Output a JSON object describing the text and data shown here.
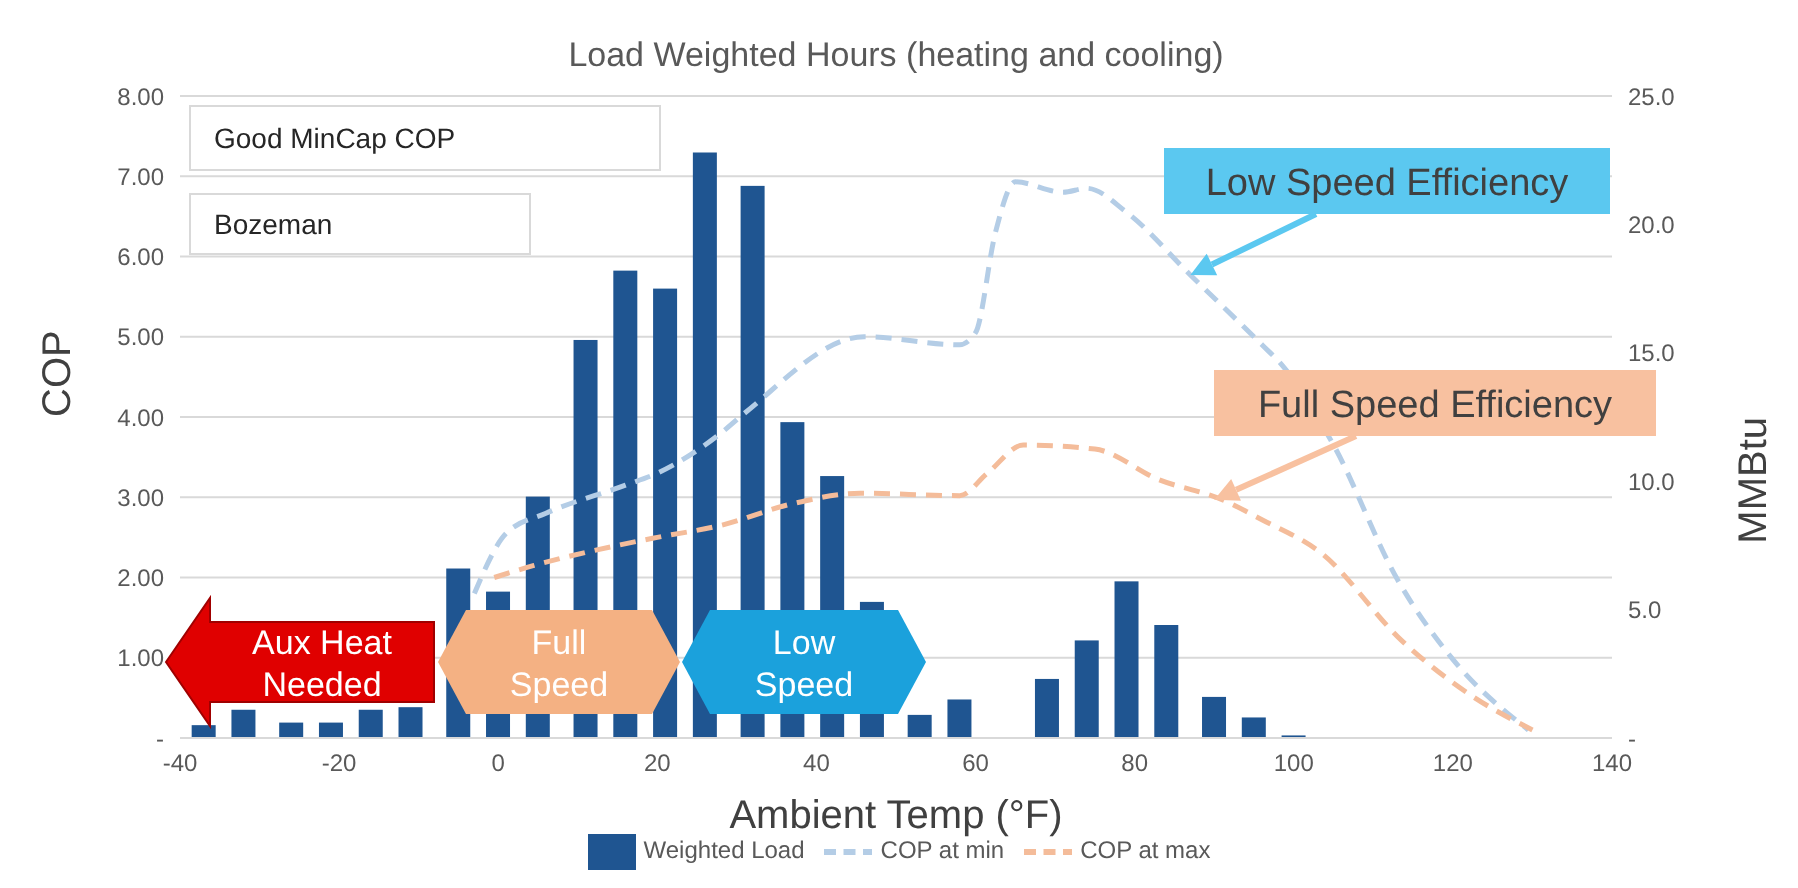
{
  "chart_data": {
    "type": "bar",
    "title": "Load Weighted Hours (heating and cooling)",
    "xlabel": "Ambient Temp (°F)",
    "ylabel": "COP",
    "y2label": "MMBtu",
    "xlim": [
      -40,
      140
    ],
    "xticks": [
      -40,
      -20,
      0,
      20,
      40,
      60,
      80,
      100,
      120,
      140
    ],
    "ylim": [
      0,
      8
    ],
    "yticks": [
      {
        "value": 0,
        "label": "-"
      },
      {
        "value": 1,
        "label": "1.00"
      },
      {
        "value": 2,
        "label": "2.00"
      },
      {
        "value": 3,
        "label": "3.00"
      },
      {
        "value": 4,
        "label": "4.00"
      },
      {
        "value": 5,
        "label": "5.00"
      },
      {
        "value": 6,
        "label": "6.00"
      },
      {
        "value": 7,
        "label": "7.00"
      },
      {
        "value": 8,
        "label": "8.00"
      }
    ],
    "y2lim": [
      0,
      25
    ],
    "y2ticks": [
      {
        "value": 0,
        "label": "-"
      },
      {
        "value": 5,
        "label": "5.0"
      },
      {
        "value": 10,
        "label": "10.0"
      },
      {
        "value": 15,
        "label": "15.0"
      },
      {
        "value": 20,
        "label": "20.0"
      },
      {
        "value": 25,
        "label": "25.0"
      }
    ],
    "grid": "y",
    "legend": "bottom",
    "marker": "none",
    "series": [
      {
        "name": "Weighted Load",
        "axis": "y2",
        "color": "#1f5591",
        "x": [
          -37,
          -32,
          -26,
          -21,
          -16,
          -11,
          -5,
          0,
          5,
          11,
          16,
          21,
          26,
          32,
          37,
          42,
          47,
          53,
          58,
          69,
          74,
          79,
          84,
          90,
          95,
          100
        ],
        "values": [
          0.5,
          1.1,
          0.6,
          0.6,
          1.1,
          1.2,
          6.6,
          5.7,
          9.4,
          15.5,
          18.2,
          17.5,
          22.8,
          21.5,
          12.3,
          10.2,
          5.3,
          0.9,
          1.5,
          2.3,
          3.8,
          6.1,
          4.4,
          1.6,
          0.8,
          0.1
        ]
      },
      {
        "name": "COP at min",
        "type": "line",
        "line_style": "dashed",
        "color": "#b4cde6",
        "x": [
          -3,
          1,
          6,
          16,
          20,
          28,
          31,
          46,
          58,
          60,
          62.5,
          65,
          71,
          74,
          79,
          87,
          96,
          98.5,
          105,
          113,
          120,
          129.5
        ],
        "values": [
          1.8,
          2.55,
          2.8,
          3.15,
          3.3,
          3.8,
          4.05,
          5.0,
          4.9,
          5.05,
          6.3,
          6.93,
          6.8,
          6.85,
          6.55,
          5.77,
          4.9,
          4.65,
          3.65,
          1.98,
          0.98,
          0.1
        ]
      },
      {
        "name": "COP at max",
        "type": "line",
        "line_style": "dashed",
        "color": "#f4bc9a",
        "x": [
          -0.5,
          4.5,
          15,
          20,
          28,
          37,
          45.5,
          58,
          61.5,
          66,
          75,
          83,
          91,
          96,
          103.5,
          113.5,
          122,
          130
        ],
        "values": [
          2.0,
          2.15,
          2.4,
          2.5,
          2.65,
          2.92,
          3.05,
          3.02,
          3.3,
          3.65,
          3.6,
          3.22,
          2.97,
          2.72,
          2.3,
          1.22,
          0.55,
          0.1
        ]
      }
    ],
    "annotations": [
      "Good MinCap COP",
      "Bozeman",
      {
        "text": "Low Speed Efficiency",
        "x": 87,
        "y": 5.77
      },
      {
        "text": "Full Speed Efficiency",
        "x": 90,
        "y": 2.97
      },
      "Aux Heat Needed",
      "Full Speed",
      "Low Speed"
    ]
  }
}
